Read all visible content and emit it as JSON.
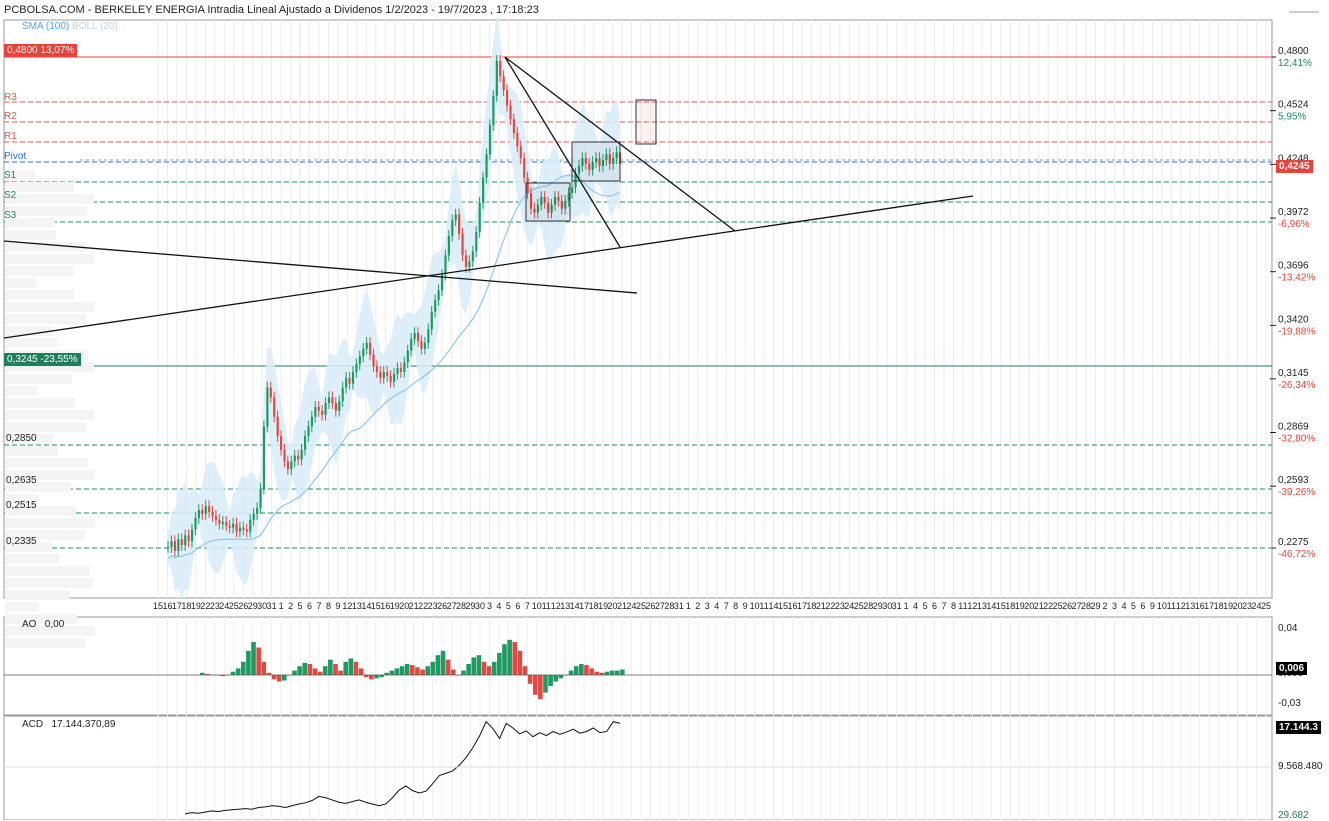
{
  "header": {
    "title": "PCBOLSA.COM - BERKELEY ENERGIA Intradia Lineal Ajustado a Dividenos 1/2/2023 - 19/7/2023 , 17:18:23",
    "sma_label": "SMA (100)",
    "boll_label": "BOLL (20)"
  },
  "tags": {
    "top": "0,4800 13,07%",
    "bottom": "0,3245 -23,55%",
    "current": "0,4245"
  },
  "pivots": [
    "R3",
    "R2",
    "R1",
    "Pivot",
    "S1",
    "S2",
    "S3"
  ],
  "levels": [
    "0,2850",
    "0,2635",
    "0,2515",
    "0,2335"
  ],
  "indicators": {
    "ao_label": "AO",
    "ao_value": "0,00",
    "ao_ticks": [
      "0,04",
      "0,006",
      "-0,03"
    ],
    "ao_current": "0,006",
    "acd_label": "ACD",
    "acd_value": "17.144.370,89",
    "acd_current": "17.144.3",
    "acd_ticks": [
      "9.568.480",
      "29.682"
    ]
  },
  "chart_data": {
    "type": "candlestick",
    "title": "PCBOLSA.COM - BERKELEY ENERGIA Intradia Lineal Ajustado a Dividenos 1/2/2023 - 19/7/2023 , 17:18:23",
    "period": "1/2/2023 - 19/7/2023",
    "ylim": [
      0.2,
      0.5
    ],
    "y_ticks": [
      "0,4800",
      "0,4524",
      "0,4248",
      "0,3972",
      "0,3696",
      "0,3420",
      "0,3145",
      "0,2869",
      "0,2593",
      "0,2275"
    ],
    "y_pct": [
      "12,41%",
      "5,95%",
      "-6,96%",
      "-13,42%",
      "-19,88%",
      "-26,34%",
      "-32,80%",
      "-39,26%",
      "-46,72%"
    ],
    "x_labels": [
      "15",
      "16",
      "17",
      "18",
      "19",
      "22",
      "23",
      "24",
      "25",
      "26",
      "29",
      "30",
      "31",
      "1",
      "2",
      "5",
      "6",
      "7",
      "8",
      "9",
      "12",
      "13",
      "14",
      "15",
      "16",
      "19",
      "20",
      "21",
      "22",
      "23",
      "26",
      "27",
      "28",
      "29",
      "30",
      "3",
      "4",
      "5",
      "6",
      "7",
      "10",
      "11",
      "12",
      "13",
      "14",
      "17",
      "18",
      "19",
      "20",
      "21",
      "24",
      "25",
      "26",
      "27",
      "28",
      "31",
      "1",
      "2",
      "3",
      "4",
      "7",
      "8",
      "9",
      "10",
      "11",
      "14",
      "15",
      "16",
      "17",
      "18",
      "21",
      "22",
      "23",
      "24",
      "25",
      "28",
      "29",
      "30",
      "31",
      "1",
      "4",
      "5",
      "6",
      "7",
      "8",
      "11",
      "12",
      "13",
      "14",
      "15",
      "18",
      "19",
      "20",
      "21",
      "22",
      "25",
      "26",
      "27",
      "28",
      "29",
      "2",
      "3",
      "4",
      "5",
      "6",
      "9",
      "10",
      "11",
      "12",
      "13",
      "16",
      "17",
      "18",
      "19",
      "20",
      "23",
      "24",
      "25"
    ],
    "pivots": {
      "R3": 0.4524,
      "R2": 0.4448,
      "R1": 0.4372,
      "Pivot": 0.429,
      "S1": 0.422,
      "S2": 0.414,
      "S3": 0.406
    },
    "levels": [
      0.285,
      0.2635,
      0.2515,
      0.2335
    ],
    "max_level": 0.48,
    "min_level": 0.3245,
    "current": 0.4245,
    "price_path": [
      [
        0.228,
        0.231,
        0.226,
        0.232,
        0.229,
        0.234,
        0.231,
        0.237,
        0.243,
        0.247,
        0.245,
        0.249,
        0.246,
        0.244,
        0.242,
        0.24,
        0.241,
        0.239,
        0.238,
        0.24,
        0.236,
        0.238,
        0.237,
        0.236,
        0.242,
        0.245,
        0.248,
        0.258,
        0.29,
        0.31,
        0.305,
        0.295,
        0.285,
        0.278,
        0.272,
        0.268,
        0.272,
        0.275,
        0.273,
        0.278,
        0.285,
        0.29,
        0.295,
        0.3,
        0.298,
        0.296,
        0.302,
        0.305,
        0.302,
        0.298,
        0.303,
        0.31,
        0.315,
        0.312,
        0.318,
        0.322,
        0.326,
        0.33,
        0.333,
        0.327,
        0.321,
        0.318,
        0.315,
        0.318,
        0.316,
        0.313,
        0.317,
        0.32,
        0.318,
        0.323,
        0.329,
        0.335,
        0.338,
        0.334,
        0.33,
        0.333,
        0.34,
        0.349,
        0.355,
        0.36,
        0.368,
        0.378,
        0.388,
        0.396,
        0.399,
        0.389,
        0.378,
        0.372,
        0.375,
        0.38,
        0.39,
        0.405,
        0.418,
        0.43,
        0.445,
        0.46,
        0.478,
        0.47,
        0.463,
        0.455,
        0.448,
        0.441,
        0.434,
        0.428,
        0.418,
        0.41,
        0.402,
        0.4,
        0.404,
        0.408,
        0.405,
        0.4,
        0.404,
        0.408,
        0.406,
        0.402,
        0.406,
        0.41,
        0.413,
        0.42,
        0.424,
        0.428,
        0.425,
        0.422,
        0.426,
        0.428,
        0.424,
        0.427,
        0.43,
        0.425,
        0.428,
        0.431,
        0.425
      ]
    ],
    "ao": [
      0.002,
      0.001,
      0.0,
      0.0,
      -0.001,
      0.0,
      0.003,
      0.006,
      0.012,
      0.022,
      0.03,
      0.025,
      0.012,
      0.002,
      -0.004,
      -0.006,
      -0.005,
      0.0,
      0.004,
      0.008,
      0.011,
      0.01,
      0.006,
      0.003,
      0.008,
      0.014,
      0.01,
      0.004,
      0.012,
      0.015,
      0.012,
      0.006,
      -0.002,
      -0.004,
      -0.003,
      -0.002,
      0.002,
      0.004,
      0.006,
      0.008,
      0.01,
      0.009,
      0.007,
      0.005,
      0.008,
      0.012,
      0.018,
      0.022,
      0.014,
      0.005,
      0.0,
      0.004,
      0.01,
      0.016,
      0.018,
      0.012,
      0.008,
      0.012,
      0.02,
      0.028,
      0.032,
      0.03,
      0.022,
      0.008,
      -0.008,
      -0.018,
      -0.022,
      -0.016,
      -0.01,
      -0.006,
      -0.003,
      0.0,
      0.004,
      0.008,
      0.01,
      0.009,
      0.006,
      0.003,
      0.002,
      0.003,
      0.004,
      0.004,
      0.005
    ],
    "acd": [
      1.2,
      1.4,
      1.3,
      1.5,
      1.7,
      1.6,
      1.8,
      1.9,
      2.0,
      2.1,
      2.0,
      2.3,
      2.4,
      2.6,
      2.5,
      2.3,
      2.6,
      2.9,
      3.1,
      3.5,
      4.2,
      4.0,
      3.6,
      3.2,
      3.0,
      3.3,
      3.6,
      3.2,
      2.9,
      2.6,
      2.9,
      4.0,
      5.3,
      6.0,
      5.2,
      4.8,
      5.1,
      6.4,
      7.8,
      8.2,
      8.6,
      9.6,
      10.9,
      12.6,
      14.6,
      17.1,
      15.9,
      14.2,
      16.8,
      16.0,
      15.0,
      15.5,
      14.5,
      15.2,
      14.7,
      15.4,
      14.9,
      15.3,
      15.8,
      15.1,
      15.4,
      16.0,
      15.2,
      15.4,
      17.1,
      16.8
    ]
  }
}
